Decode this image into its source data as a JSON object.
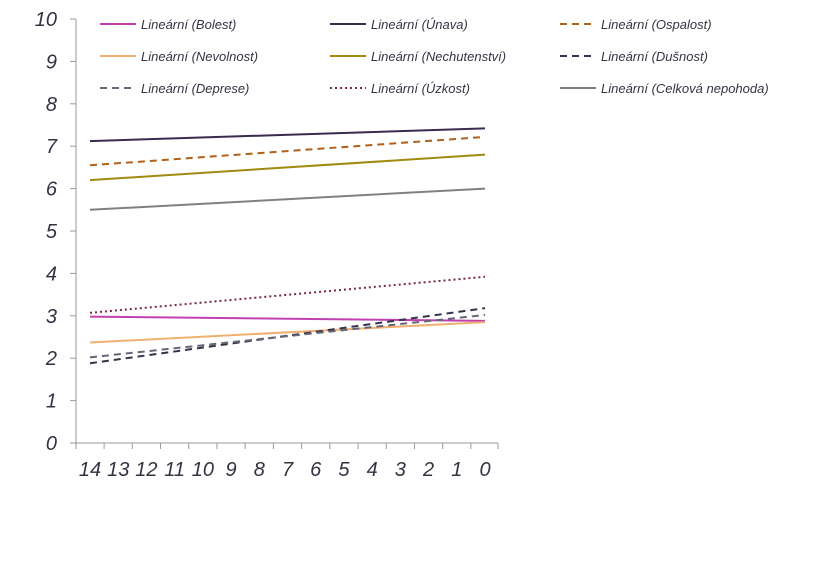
{
  "chart_data": {
    "type": "line",
    "x": [
      14,
      13,
      12,
      11,
      10,
      9,
      8,
      7,
      6,
      5,
      4,
      3,
      2,
      1,
      0
    ],
    "xlim": [
      14,
      0
    ],
    "ylim": [
      0,
      10
    ],
    "y_ticks": [
      0,
      1,
      2,
      3,
      4,
      5,
      6,
      7,
      8,
      9,
      10
    ],
    "grid": false,
    "legend_placement": "top",
    "series": [
      {
        "name": "Lineární (Bolest)",
        "color": "#c040b0",
        "dash": "solid",
        "start": 2.98,
        "end": 2.88
      },
      {
        "name": "Lineární (Únava)",
        "color": "#3a2a4e",
        "dash": "solid",
        "start": 7.12,
        "end": 7.42
      },
      {
        "name": "Lineární (Ospalost)",
        "color": "#b0601a",
        "dash": "dashed",
        "start": 6.55,
        "end": 7.22
      },
      {
        "name": "Lineární (Nevolnost)",
        "color": "#f0b070",
        "dash": "solid",
        "start": 2.37,
        "end": 2.85
      },
      {
        "name": "Lineární (Nechutenství)",
        "color": "#a08a10",
        "dash": "solid",
        "start": 6.2,
        "end": 6.8
      },
      {
        "name": "Lineární (Dušnost)",
        "color": "#33334a",
        "dash": "dashed",
        "start": 1.88,
        "end": 3.18
      },
      {
        "name": "Lineární (Deprese)",
        "color": "#666677",
        "dash": "dashed",
        "start": 2.02,
        "end": 3.02
      },
      {
        "name": "Lineární (Úzkost)",
        "color": "#7a2a3a",
        "dash": "dotted",
        "start": 3.07,
        "end": 3.92
      },
      {
        "name": "Lineární (Celková nepohoda)",
        "color": "#808080",
        "dash": "solid",
        "start": 5.5,
        "end": 6.0
      }
    ]
  }
}
